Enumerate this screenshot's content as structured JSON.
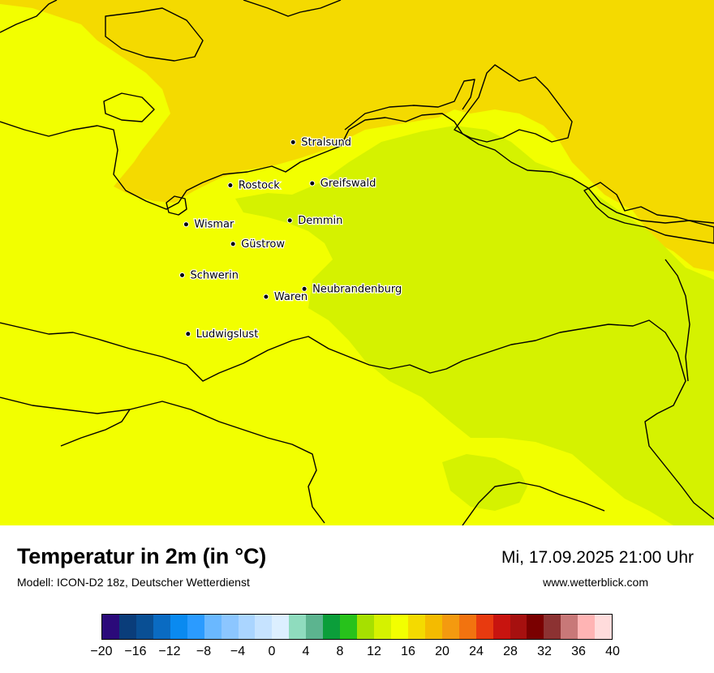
{
  "title": "Temperatur in 2m (in °C)",
  "model": "Modell: ICON-D2 18z, Deutscher Wetterdienst",
  "datetime": "Mi, 17.09.2025 21:00 Uhr",
  "site": "www.wetterblick.com",
  "colors": {
    "zone_orange": "#f4da00",
    "zone_yellow": "#f2ff00",
    "zone_green": "#d5f200"
  },
  "cities": [
    {
      "name": "Stralsund",
      "lat": 54.31,
      "lon": 13.09
    },
    {
      "name": "Rostock",
      "lat": 54.09,
      "lon": 12.14
    },
    {
      "name": "Greifswald",
      "lat": 54.1,
      "lon": 13.38
    },
    {
      "name": "Wismar",
      "lat": 53.89,
      "lon": 11.47
    },
    {
      "name": "Demmin",
      "lat": 53.91,
      "lon": 13.04
    },
    {
      "name": "Güstrow",
      "lat": 53.79,
      "lon": 12.18
    },
    {
      "name": "Schwerin",
      "lat": 53.63,
      "lon": 11.41
    },
    {
      "name": "Neubrandenburg",
      "lat": 53.56,
      "lon": 13.26
    },
    {
      "name": "Waren",
      "lat": 53.52,
      "lon": 12.68
    },
    {
      "name": "Ludwigslust",
      "lat": 53.33,
      "lon": 11.5
    }
  ],
  "colorbar": {
    "colors": [
      "#2b0a7a",
      "#0a3d7a",
      "#094f94",
      "#0a6bc2",
      "#0a8af0",
      "#2b9bff",
      "#6ab8ff",
      "#8cc6ff",
      "#aad5ff",
      "#c6e3ff",
      "#dcefff",
      "#8fdcbe",
      "#5cb48f",
      "#0b9e3a",
      "#27c21b",
      "#a6e000",
      "#d5f200",
      "#f2ff00",
      "#f4da00",
      "#f4bb00",
      "#f49a0f",
      "#f2730f",
      "#e83a0f",
      "#c8140f",
      "#a6100f",
      "#7a0000",
      "#8c3232",
      "#c87878",
      "#ffb4b4",
      "#ffdcdc"
    ],
    "ticks": [
      "−20",
      "−16",
      "−12",
      "−8",
      "−4",
      "0",
      "4",
      "8",
      "12",
      "16",
      "20",
      "24",
      "28",
      "32",
      "36",
      "40"
    ]
  }
}
